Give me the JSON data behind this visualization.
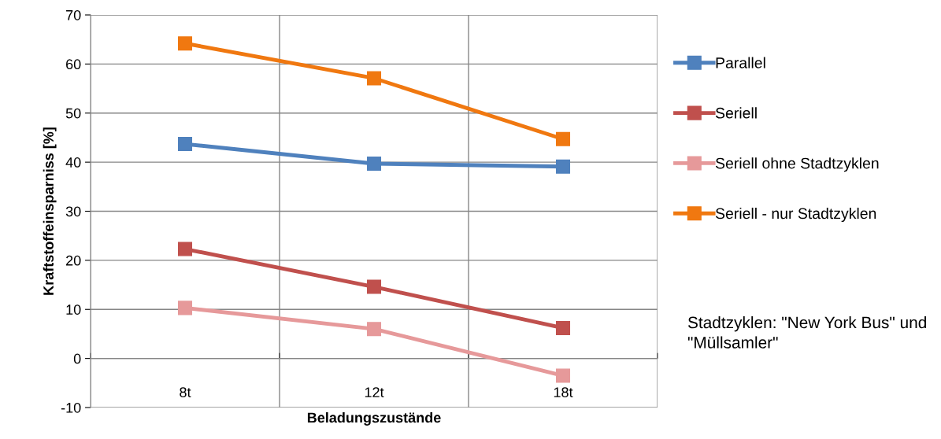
{
  "chart_data": {
    "type": "line",
    "xlabel": "Beladungszustände",
    "ylabel": "Kraftstoffeinsparniss [%]",
    "categories": [
      "8t",
      "12t",
      "18t"
    ],
    "series": [
      {
        "name": "Parallel",
        "color": "#4f81bd",
        "values": [
          43.7,
          39.7,
          39.1
        ]
      },
      {
        "name": "Seriell",
        "color": "#c0504d",
        "values": [
          22.3,
          14.6,
          6.2
        ]
      },
      {
        "name": "Seriell ohne Stadtzyklen",
        "color": "#e6999a",
        "values": [
          10.3,
          6.0,
          -3.5
        ]
      },
      {
        "name": "Seriell - nur Stadtzyklen",
        "color": "#f07810",
        "values": [
          64.2,
          57.1,
          44.7
        ]
      }
    ],
    "ylim": [
      -10,
      70
    ],
    "yticks": [
      -10,
      0,
      10,
      20,
      30,
      40,
      50,
      60,
      70
    ],
    "grid": true,
    "legend": "right",
    "marker": "square",
    "line_style": "solid",
    "annotations": [
      "Stadtzyklen: \"New York Bus\" und \"Müllsamler\""
    ]
  }
}
